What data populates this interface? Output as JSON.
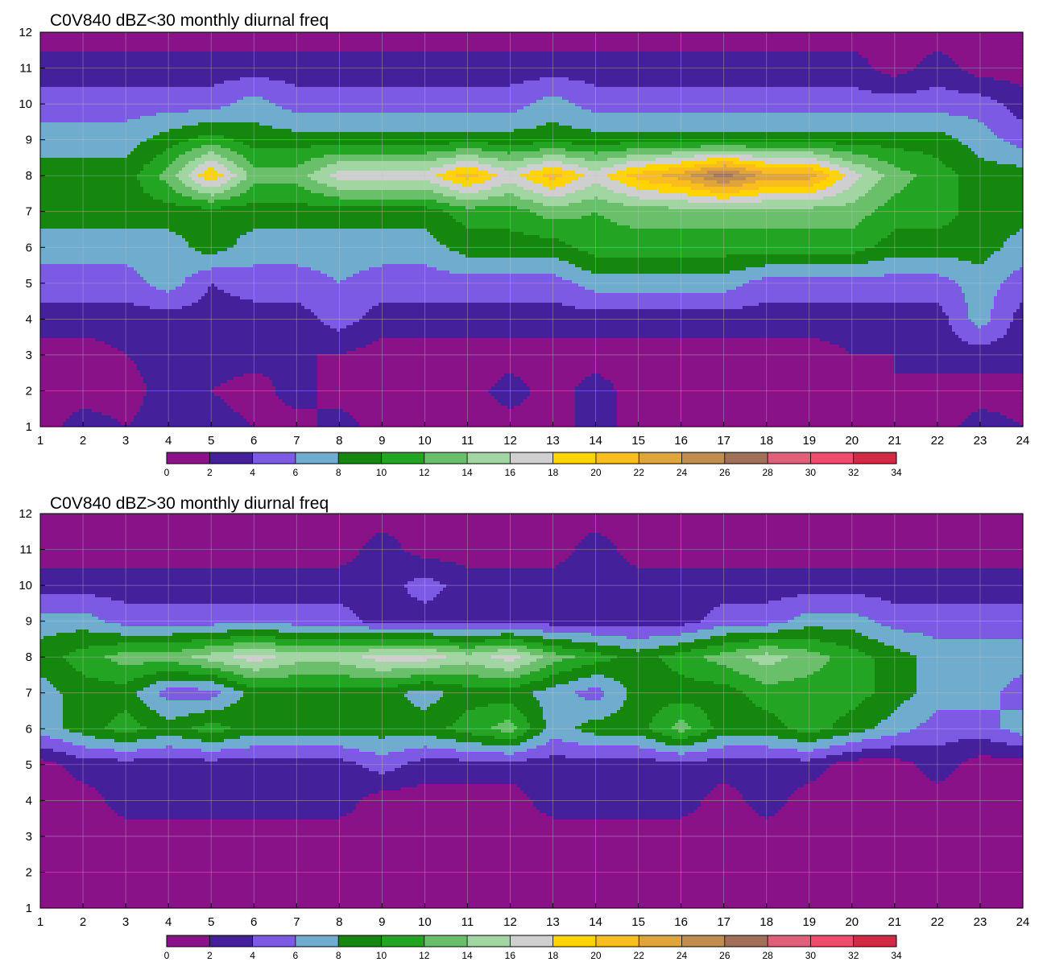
{
  "chart_data": [
    {
      "type": "contour",
      "title": "C0V840 dBZ<30 monthly diurnal freq",
      "xlabel": "",
      "ylabel": "",
      "xlim": [
        1,
        24
      ],
      "ylim": [
        1,
        12
      ],
      "x": [
        1,
        2,
        3,
        4,
        5,
        6,
        7,
        8,
        9,
        10,
        11,
        12,
        13,
        14,
        15,
        16,
        17,
        18,
        19,
        20,
        21,
        22,
        23,
        24
      ],
      "y": [
        1,
        2,
        3,
        4,
        5,
        6,
        7,
        8,
        9,
        10,
        11,
        12
      ],
      "grid": true,
      "z": [
        [
          1,
          3,
          2,
          3,
          3,
          2,
          1,
          3,
          1,
          1,
          1,
          1,
          1,
          3,
          1,
          1,
          1,
          1,
          1,
          1,
          2,
          1,
          3,
          2
        ],
        [
          1,
          1,
          1,
          3,
          2,
          1,
          3,
          1,
          1,
          1,
          1,
          3,
          1,
          3,
          1,
          1,
          1,
          1,
          1,
          1,
          2,
          1,
          1,
          1
        ],
        [
          1,
          1,
          2,
          3,
          3,
          3,
          2,
          2,
          1,
          1,
          1,
          1,
          1,
          1,
          1,
          1,
          1,
          1,
          1,
          2,
          2,
          3,
          3,
          3
        ],
        [
          3,
          3,
          3,
          3,
          3,
          3,
          3,
          5,
          3,
          3,
          3,
          3,
          3,
          3,
          3,
          3,
          3,
          3,
          3,
          3,
          3,
          3,
          7,
          3
        ],
        [
          5,
          5,
          5,
          7,
          4,
          5,
          5,
          6,
          5,
          5,
          5,
          5,
          5,
          7,
          7,
          7,
          7,
          5,
          5,
          5,
          5,
          5,
          7,
          5
        ],
        [
          7,
          7,
          7,
          7,
          9,
          7,
          7,
          7,
          7,
          7,
          9,
          9,
          9,
          11,
          11,
          11,
          11,
          11,
          11,
          11,
          9,
          9,
          9,
          7
        ],
        [
          9,
          9,
          9,
          9,
          9,
          9,
          9,
          9,
          9,
          9,
          11,
          11,
          13,
          12,
          13,
          13,
          13,
          13,
          13,
          13,
          11,
          11,
          9,
          9
        ],
        [
          9,
          9,
          9,
          13,
          20,
          13,
          13,
          17,
          17,
          17,
          21,
          17,
          21,
          17,
          21,
          23,
          27,
          23,
          23,
          17,
          13,
          11,
          9,
          9
        ],
        [
          7,
          7,
          7,
          9,
          11,
          9,
          9,
          9,
          9,
          9,
          9,
          9,
          9,
          9,
          9,
          9,
          9,
          9,
          9,
          9,
          9,
          9,
          7,
          5
        ],
        [
          5,
          5,
          5,
          5,
          5,
          7,
          5,
          5,
          5,
          5,
          5,
          5,
          7,
          5,
          5,
          5,
          5,
          5,
          5,
          5,
          5,
          5,
          5,
          3
        ],
        [
          3,
          3,
          3,
          3,
          3,
          3,
          3,
          3,
          3,
          3,
          3,
          3,
          3,
          3,
          3,
          3,
          3,
          3,
          3,
          3,
          1,
          3,
          1,
          1
        ],
        [
          1,
          1,
          1,
          1,
          1,
          1,
          1,
          1,
          1,
          1,
          1,
          1,
          1,
          1,
          1,
          1,
          1,
          1,
          1,
          1,
          1,
          1,
          1,
          1
        ]
      ],
      "colorbar": {
        "levels": [
          0,
          2,
          4,
          6,
          8,
          10,
          12,
          14,
          16,
          18,
          20,
          22,
          24,
          26,
          28,
          30,
          32,
          34
        ],
        "tick_labels": [
          "0",
          "2",
          "4",
          "6",
          "8",
          "10",
          "12",
          "14",
          "16",
          "18",
          "20",
          "22",
          "24",
          "26",
          "28",
          "30",
          "32",
          "34"
        ]
      }
    },
    {
      "type": "contour",
      "title": "C0V840 dBZ>30 monthly diurnal freq",
      "xlabel": "",
      "ylabel": "",
      "xlim": [
        1,
        24
      ],
      "ylim": [
        1,
        12
      ],
      "x": [
        1,
        2,
        3,
        4,
        5,
        6,
        7,
        8,
        9,
        10,
        11,
        12,
        13,
        14,
        15,
        16,
        17,
        18,
        19,
        20,
        21,
        22,
        23,
        24
      ],
      "y": [
        1,
        2,
        3,
        4,
        5,
        6,
        7,
        8,
        9,
        10,
        11,
        12
      ],
      "grid": true,
      "z": [
        [
          1,
          1,
          1,
          1,
          1,
          1,
          1,
          1,
          1,
          1,
          1,
          1,
          1,
          1,
          1,
          1,
          1,
          1,
          1,
          1,
          1,
          1,
          1,
          1
        ],
        [
          1,
          1,
          1,
          1,
          1,
          1,
          1,
          1,
          1,
          1,
          1,
          1,
          1,
          1,
          1,
          1,
          1,
          1,
          1,
          1,
          1,
          1,
          1,
          1
        ],
        [
          1,
          1,
          1,
          1,
          1,
          1,
          1,
          1,
          1,
          1,
          1,
          1,
          1,
          1,
          1,
          1,
          1,
          1,
          1,
          1,
          1,
          1,
          1,
          1
        ],
        [
          1,
          1,
          3,
          3,
          3,
          3,
          3,
          3,
          1,
          1,
          1,
          1,
          3,
          3,
          3,
          3,
          1,
          3,
          1,
          1,
          1,
          1,
          1,
          1
        ],
        [
          1,
          3,
          3,
          3,
          3,
          3,
          3,
          3,
          5,
          3,
          3,
          3,
          3,
          3,
          3,
          3,
          3,
          3,
          3,
          1,
          1,
          3,
          1,
          1
        ],
        [
          7,
          9,
          11,
          9,
          11,
          9,
          9,
          9,
          9,
          9,
          11,
          13,
          7,
          9,
          9,
          13,
          9,
          9,
          11,
          9,
          7,
          5,
          5,
          7
        ],
        [
          7,
          9,
          9,
          5,
          5,
          9,
          9,
          9,
          9,
          7,
          9,
          9,
          7,
          5,
          9,
          9,
          9,
          11,
          11,
          11,
          9,
          7,
          7,
          5
        ],
        [
          9,
          11,
          13,
          13,
          15,
          17,
          15,
          15,
          17,
          17,
          15,
          17,
          13,
          11,
          9,
          11,
          13,
          15,
          13,
          11,
          9,
          7,
          7,
          7
        ],
        [
          7,
          7,
          5,
          5,
          5,
          5,
          5,
          5,
          3,
          3,
          3,
          3,
          3,
          3,
          3,
          3,
          5,
          5,
          7,
          7,
          5,
          5,
          5,
          5
        ],
        [
          3,
          3,
          3,
          3,
          3,
          3,
          3,
          3,
          3,
          5,
          3,
          3,
          3,
          3,
          3,
          3,
          3,
          3,
          3,
          3,
          3,
          3,
          3,
          3
        ],
        [
          1,
          1,
          1,
          1,
          1,
          1,
          1,
          1,
          3,
          1,
          1,
          1,
          1,
          3,
          1,
          1,
          1,
          1,
          1,
          1,
          1,
          1,
          1,
          1
        ],
        [
          1,
          1,
          1,
          1,
          1,
          1,
          1,
          1,
          1,
          1,
          1,
          1,
          1,
          1,
          1,
          1,
          1,
          1,
          1,
          1,
          1,
          1,
          1,
          1
        ]
      ],
      "colorbar": {
        "levels": [
          0,
          2,
          4,
          6,
          8,
          10,
          12,
          14,
          16,
          18,
          20,
          22,
          24,
          26,
          28,
          30,
          32,
          34
        ],
        "tick_labels": [
          "0",
          "2",
          "4",
          "6",
          "8",
          "10",
          "12",
          "14",
          "16",
          "18",
          "20",
          "22",
          "24",
          "26",
          "28",
          "30",
          "32",
          "34"
        ]
      }
    }
  ],
  "palette": [
    "#8a1289",
    "#44209b",
    "#7c5ae3",
    "#6faccd",
    "#16870e",
    "#23a523",
    "#6abf6a",
    "#a1d5a1",
    "#cfcfcf",
    "#ffd400",
    "#f9bd1d",
    "#e0a53a",
    "#c08c50",
    "#a0705a",
    "#e0607a",
    "#f04a6c",
    "#d42a45"
  ],
  "contour_line_color": "#f2b01e",
  "grid_color": "#c8c8c8"
}
